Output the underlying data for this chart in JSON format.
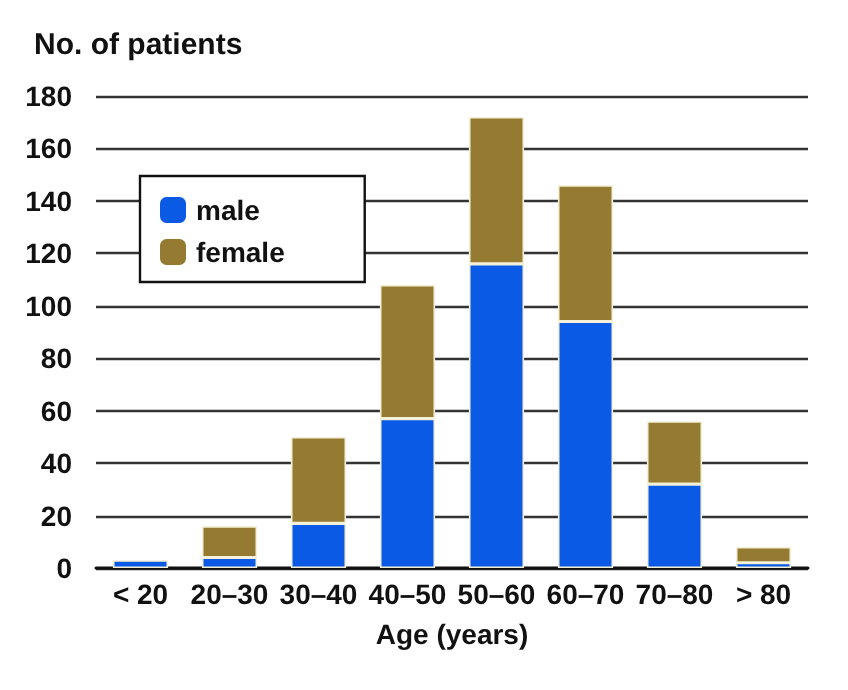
{
  "chart_data": {
    "type": "bar",
    "stacked": true,
    "xlabel": "Age (years)",
    "ylabel": "No. of patients",
    "categories": [
      "< 20",
      "20–30",
      "30–40",
      "40–50",
      "50–60",
      "60–70",
      "70–80",
      "> 80"
    ],
    "series": [
      {
        "name": "male",
        "color": "#0a5ae6",
        "values": [
          3,
          4,
          17,
          57,
          116,
          94,
          32,
          2
        ]
      },
      {
        "name": "female",
        "color": "#957a31",
        "values": [
          null,
          12,
          33,
          51,
          56,
          52,
          24,
          6
        ]
      }
    ],
    "ylim": [
      0,
      180
    ],
    "yticks": [
      0,
      20,
      40,
      60,
      80,
      100,
      120,
      140,
      160,
      180
    ],
    "grid": "y",
    "legend": "top left"
  }
}
